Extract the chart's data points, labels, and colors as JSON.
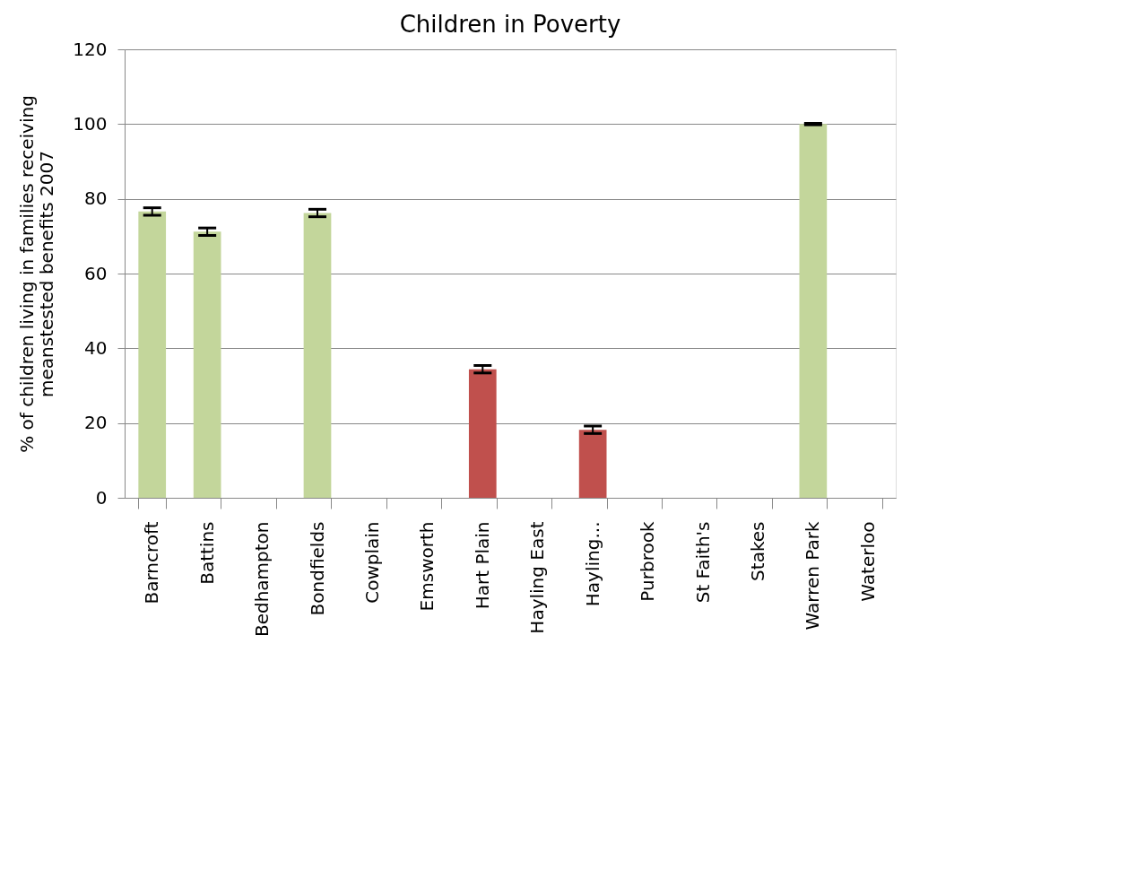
{
  "chart_data": {
    "type": "bar",
    "title": "Children in Poverty",
    "ylabel": "% of children living in families receiving\nmeanstested benefits 2007",
    "categories": [
      "Barncroft",
      "Battins",
      "Bedhampton",
      "Bondfields",
      "Cowplain",
      "Emsworth",
      "Hart Plain",
      "Hayling East",
      "Hayling...",
      "Purbrook",
      "St Faith's",
      "Stakes",
      "Warren Park",
      "Waterloo"
    ],
    "values": [
      76.6,
      71.2,
      null,
      76.2,
      null,
      null,
      34.4,
      null,
      18.2,
      null,
      null,
      null,
      100,
      null
    ],
    "errors": [
      1,
      1,
      null,
      1,
      null,
      null,
      1,
      null,
      1,
      null,
      null,
      null,
      0.2,
      null
    ],
    "colors": [
      "#c3d69b",
      "#c3d69b",
      null,
      "#c3d69b",
      null,
      null,
      "#c0504d",
      null,
      "#c0504d",
      null,
      null,
      null,
      "#c3d69b",
      null
    ],
    "ylim": [
      0,
      120
    ],
    "yticks": [
      0,
      20,
      40,
      60,
      80,
      100,
      120
    ],
    "grid": "y"
  }
}
